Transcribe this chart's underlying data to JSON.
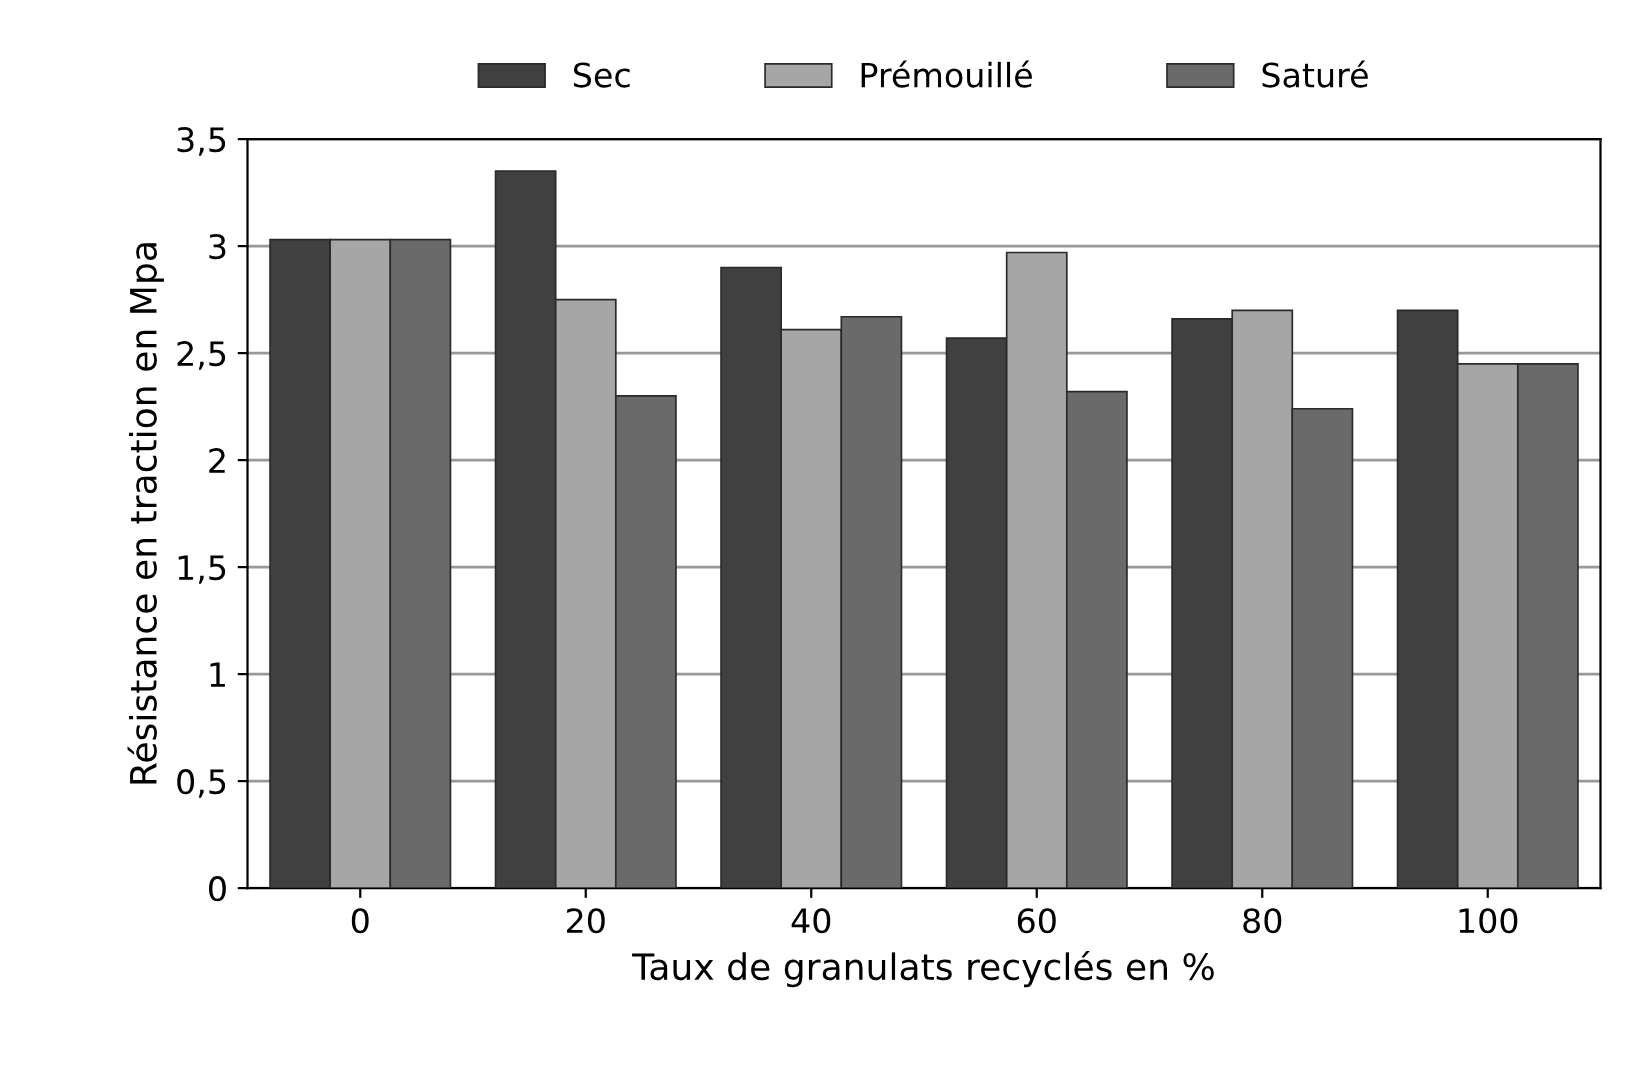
{
  "chart_data": {
    "type": "bar",
    "xlabel": "Taux de granulats recyclés en %",
    "ylabel": "Résistance en traction en Mpa",
    "categories": [
      "0",
      "20",
      "40",
      "60",
      "80",
      "100"
    ],
    "series": [
      {
        "name": "Sec",
        "color": "#404040",
        "values": [
          3.03,
          3.35,
          2.9,
          2.57,
          2.66,
          2.7
        ]
      },
      {
        "name": "Prémouillé",
        "color": "#a6a6a6",
        "values": [
          3.03,
          2.75,
          2.61,
          2.97,
          2.7,
          2.45
        ]
      },
      {
        "name": "Saturé",
        "color": "#6a6a6a",
        "values": [
          3.03,
          2.3,
          2.67,
          2.32,
          2.24,
          2.45
        ]
      }
    ],
    "ylim": [
      0,
      3.5
    ],
    "yticks": [
      {
        "value": 0,
        "label": "0"
      },
      {
        "value": 0.5,
        "label": "0,5"
      },
      {
        "value": 1,
        "label": "1"
      },
      {
        "value": 1.5,
        "label": "1,5"
      },
      {
        "value": 2,
        "label": "2"
      },
      {
        "value": 2.5,
        "label": "2,5"
      },
      {
        "value": 3,
        "label": "3"
      },
      {
        "value": 3.5,
        "label": "3,5"
      }
    ],
    "grid": "y",
    "legend": "top"
  }
}
